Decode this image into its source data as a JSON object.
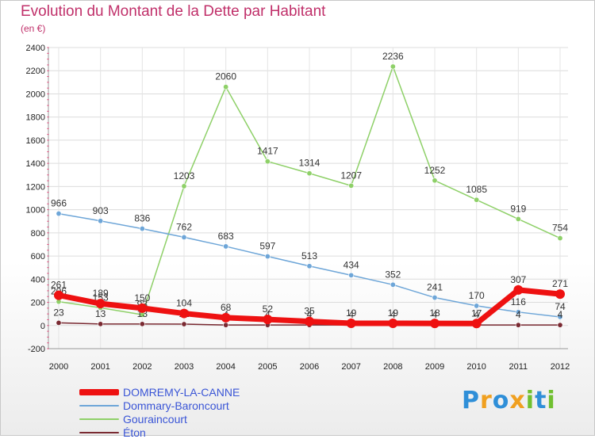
{
  "chart_data": {
    "type": "line",
    "title": "Evolution du Montant de la Dette par Habitant",
    "unit": "(en €)",
    "x": [
      "2000",
      "2001",
      "2002",
      "2003",
      "2004",
      "2005",
      "2006",
      "2007",
      "2008",
      "2009",
      "2010",
      "2011",
      "2012"
    ],
    "ylim": [
      -200,
      2400
    ],
    "yticks": [
      -200,
      0,
      200,
      400,
      600,
      800,
      1000,
      1200,
      1400,
      1600,
      1800,
      2000,
      2200,
      2400
    ],
    "grid": true,
    "series": [
      {
        "name": "Gouraincourt",
        "color": "#8ed068",
        "width": 1.5,
        "values": [
          206,
          153,
          93,
          1203,
          2060,
          1417,
          1314,
          1207,
          2236,
          1252,
          1085,
          919,
          754
        ],
        "labels": [
          "206",
          "153",
          "93",
          "1203",
          "2060",
          "1417",
          "1314",
          "1207",
          "2236",
          "1252",
          "1085",
          "919",
          "754"
        ]
      },
      {
        "name": "Dommary-Baroncourt",
        "color": "#6ea6d8",
        "width": 1.5,
        "values": [
          966,
          903,
          836,
          762,
          683,
          597,
          513,
          434,
          352,
          241,
          170,
          116,
          74
        ],
        "labels": [
          "966",
          "903",
          "836",
          "762",
          "683",
          "597",
          "513",
          "434",
          "352",
          "241",
          "170",
          "116",
          "74"
        ]
      },
      {
        "name": "Éton",
        "color": "#7a2a32",
        "width": 1.5,
        "values": [
          23,
          13,
          13,
          12,
          4,
          4,
          4,
          4,
          4,
          4,
          4,
          4,
          4
        ],
        "labels": [
          "23",
          "13",
          "13",
          "12",
          "4",
          "4",
          "4",
          "4",
          "4",
          "4",
          "4",
          "4",
          "4"
        ]
      },
      {
        "name": "DOMREMY-LA-CANNE",
        "color": "#ee1111",
        "width": 7,
        "values": [
          261,
          189,
          150,
          104,
          68,
          52,
          35,
          19,
          19,
          18,
          17,
          307,
          271
        ],
        "labels": [
          "261",
          "189",
          "150",
          "104",
          "68",
          "52",
          "35",
          "19",
          "19",
          "18",
          "17",
          "307",
          "271"
        ]
      }
    ]
  },
  "legend": [
    {
      "label": "DOMREMY-LA-CANNE",
      "color": "#ee1111",
      "thickness": 8
    },
    {
      "label": "Dommary-Baroncourt",
      "color": "#6ea6d8",
      "thickness": 2
    },
    {
      "label": "Gouraincourt",
      "color": "#8ed068",
      "thickness": 2
    },
    {
      "label": "Éton",
      "color": "#7a2a32",
      "thickness": 2
    }
  ],
  "logo": {
    "text": "Proxiti"
  }
}
